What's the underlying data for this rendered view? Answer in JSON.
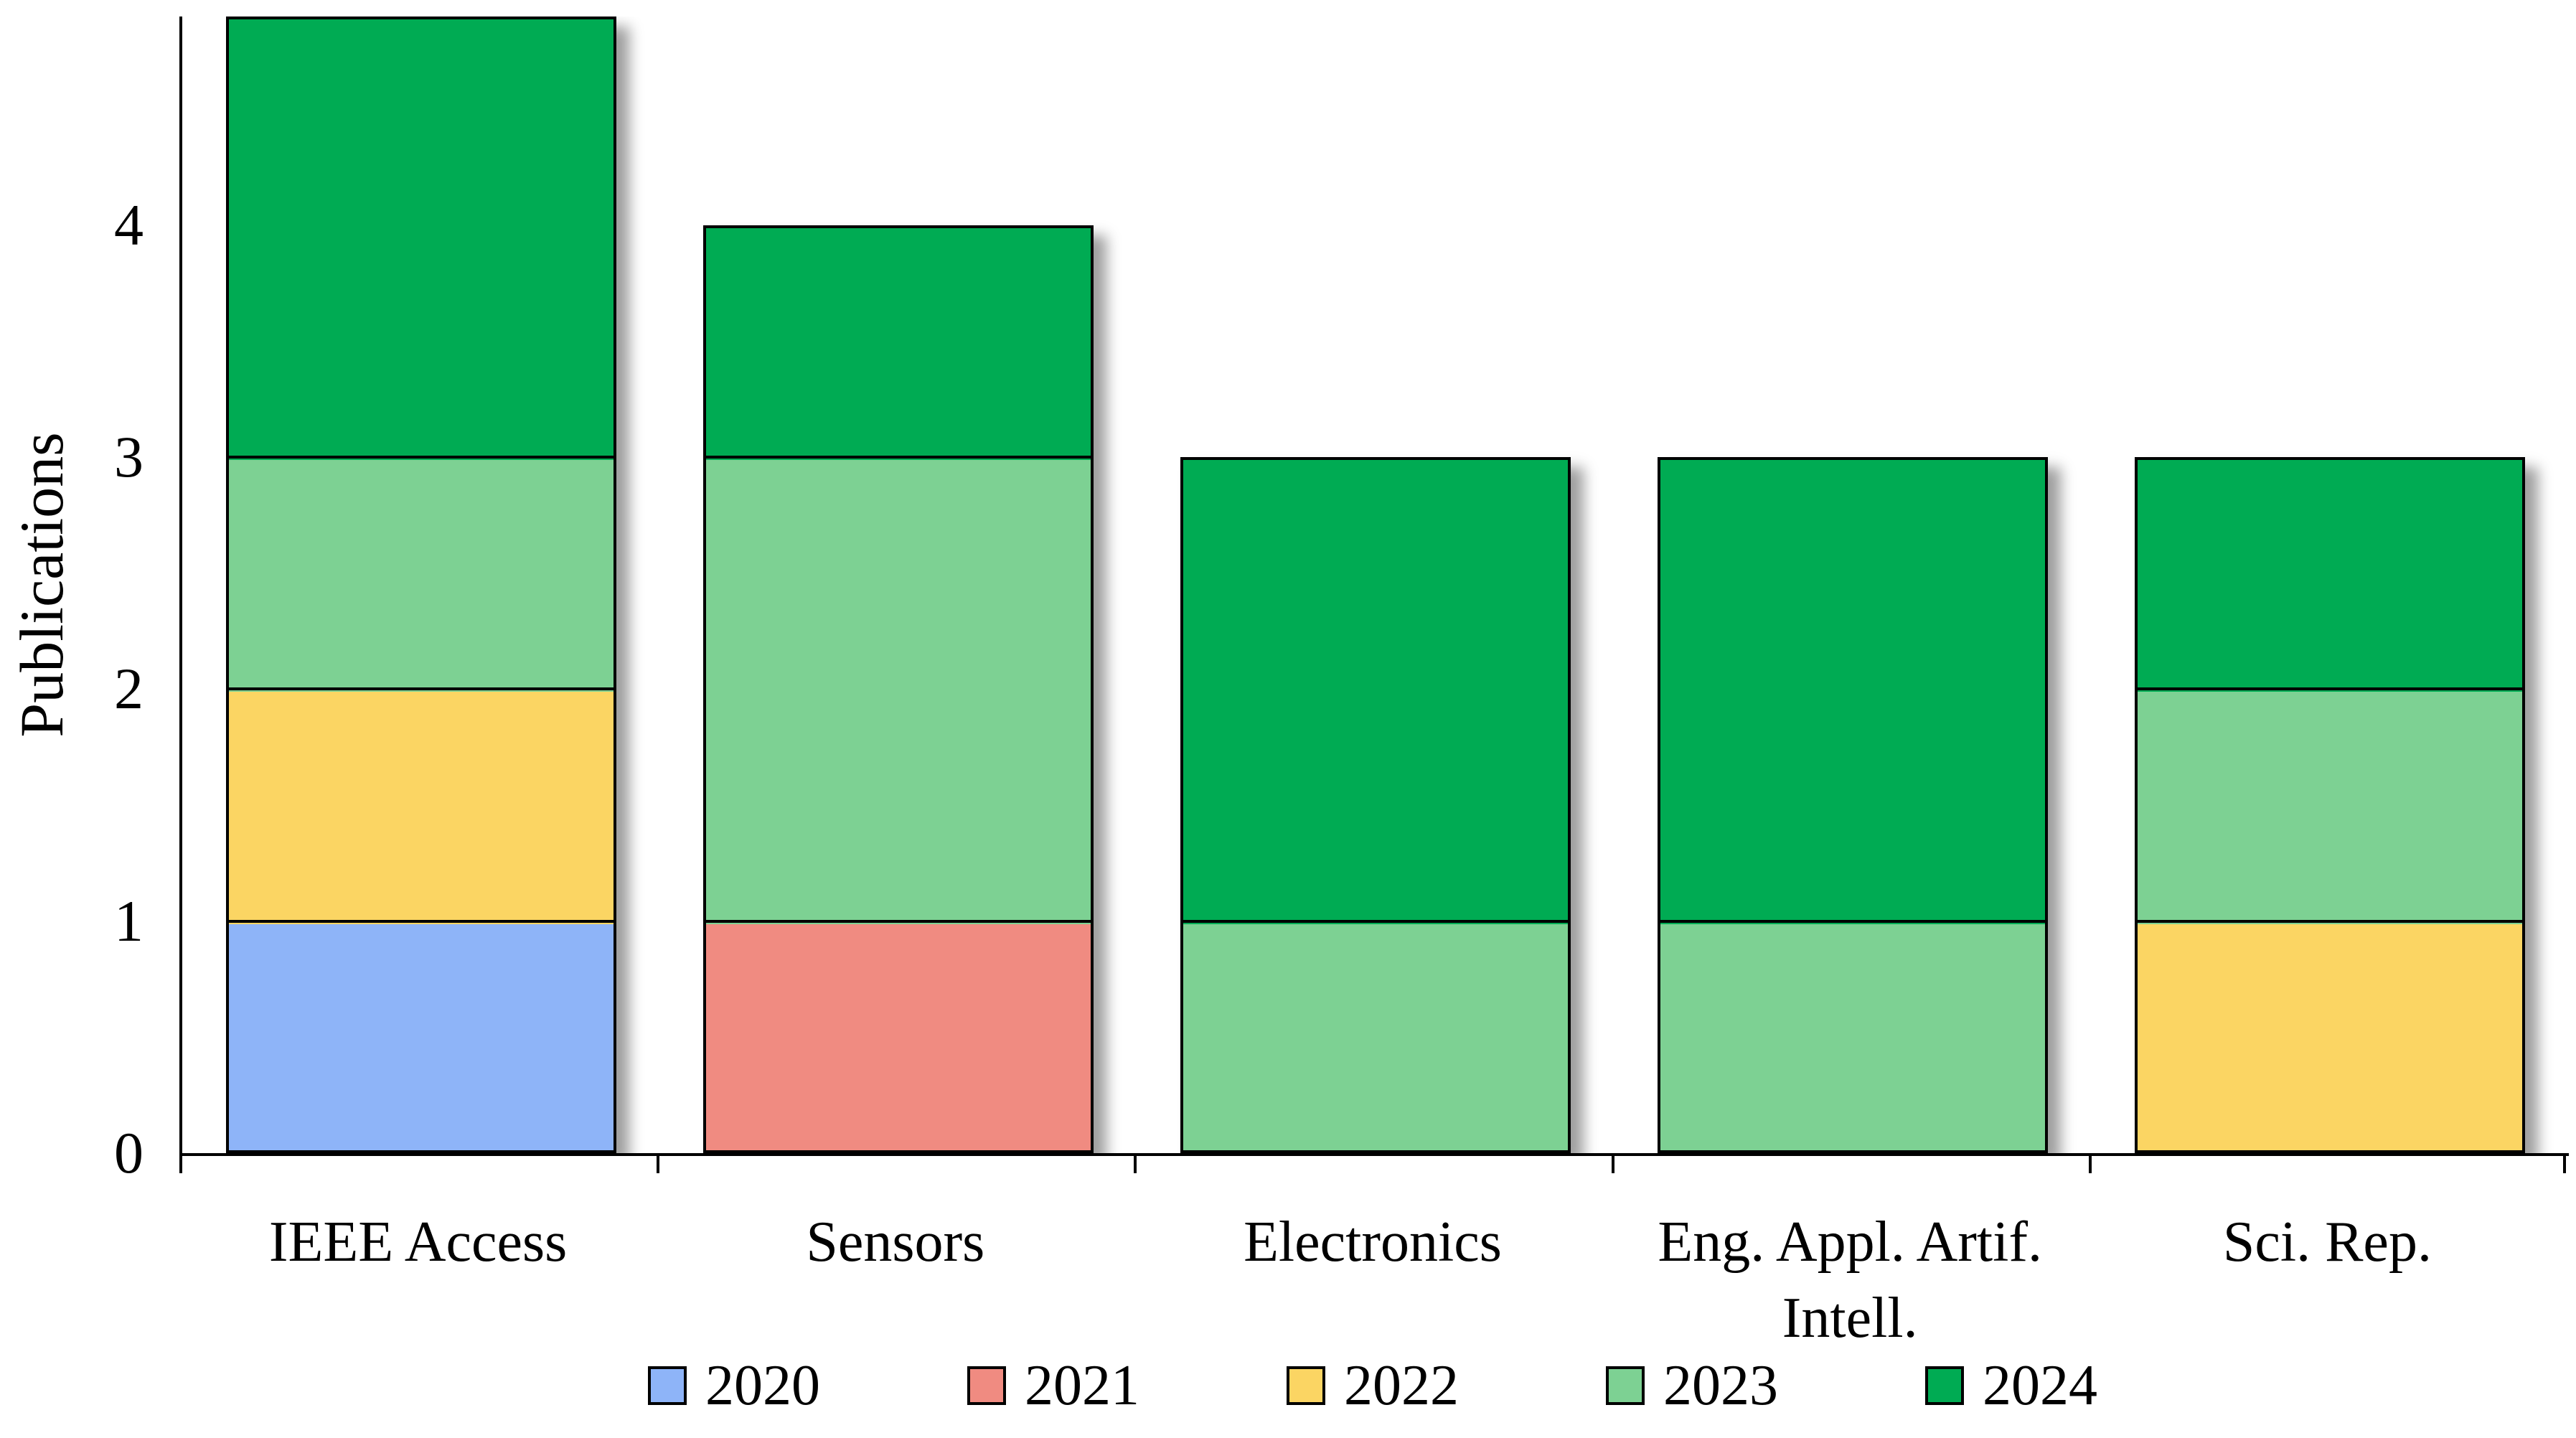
{
  "chart_data": {
    "type": "bar",
    "stacked": true,
    "title": "",
    "xlabel": "",
    "ylabel": "Publications",
    "categories": [
      "IEEE Access",
      "Sensors",
      "Electronics",
      "Eng. Appl. Artif. Intell.",
      "Sci. Rep."
    ],
    "series": [
      {
        "name": "2020",
        "color": "#8EB4F8",
        "values": [
          1,
          0,
          0,
          0,
          0
        ]
      },
      {
        "name": "2021",
        "color": "#F08B81",
        "values": [
          0,
          1,
          0,
          0,
          0
        ]
      },
      {
        "name": "2022",
        "color": "#FBD563",
        "values": [
          1,
          0,
          0,
          0,
          1
        ]
      },
      {
        "name": "2023",
        "color": "#7DD193",
        "values": [
          1,
          2,
          1,
          1,
          1
        ]
      },
      {
        "name": "2024",
        "color": "#00AB53",
        "values": [
          2,
          1,
          2,
          2,
          1
        ]
      }
    ],
    "totals_visible": [
      5,
      4,
      3,
      3,
      3
    ],
    "yticks": [
      0,
      1,
      2,
      3,
      4
    ],
    "ylim": [
      0,
      4.9
    ],
    "grid": false,
    "legend_position": "bottom",
    "bar_outline_color": "#000000",
    "axis_color": "#000000",
    "note_top_bar_clipped": "IEEE Access bar (total 5) is clipped at the plot top (y-axis max ~4.9)"
  }
}
